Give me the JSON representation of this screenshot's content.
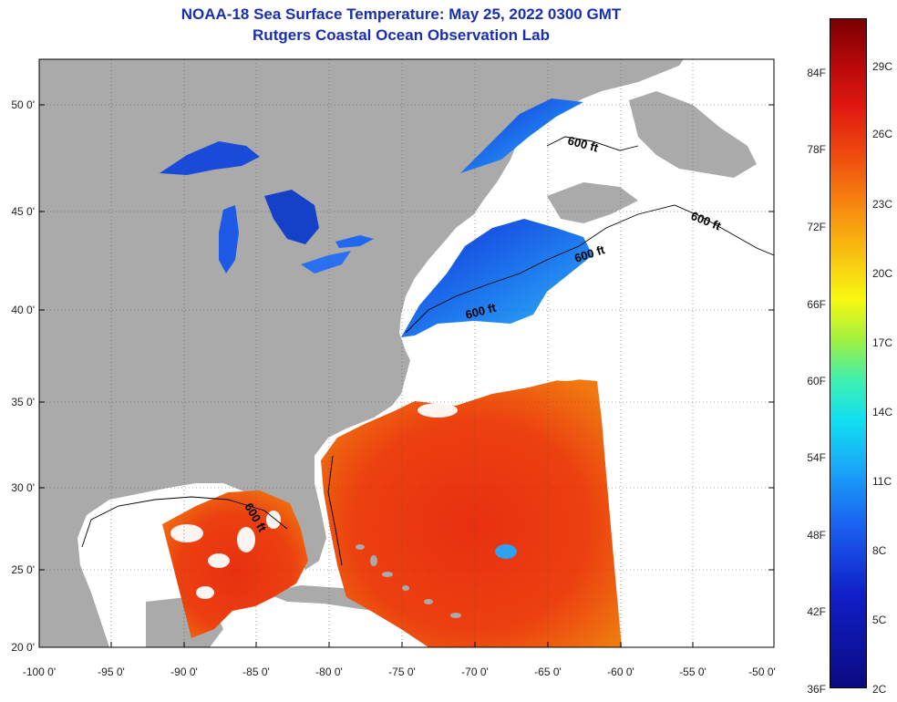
{
  "header": {
    "title_line1": "NOAA-18 Sea Surface Temperature:  May 25, 2022 0300 GMT",
    "title_line2": "Rutgers Coastal Ocean Observation Lab"
  },
  "map": {
    "lat_labels": [
      "50 0'",
      "45 0'",
      "40 0'",
      "35 0'",
      "30 0'",
      "25 0'",
      "20 0'"
    ],
    "lon_labels": [
      "-100 0'",
      "-95 0'",
      "-90 0'",
      "-85 0'",
      "-80 0'",
      "-75 0'",
      "-70 0'",
      "-65 0'",
      "-60 0'",
      "-55 0'",
      "-50 0'"
    ],
    "contour_labels": [
      "600 ft",
      "600 ft",
      "600 ft",
      "600 ft",
      "600 ft"
    ],
    "colors": {
      "land": "#aaaaaa",
      "cloud": "#ffffff",
      "warm": "#e82a10",
      "cold": "#1a55e0"
    }
  },
  "colorbar": {
    "fahrenheit_labels": [
      "84F",
      "78F",
      "72F",
      "66F",
      "60F",
      "54F",
      "48F",
      "42F",
      "36F"
    ],
    "celsius_labels": [
      "29C",
      "26C",
      "23C",
      "20C",
      "17C",
      "14C",
      "11C",
      "8C",
      "5C",
      "2C"
    ]
  }
}
